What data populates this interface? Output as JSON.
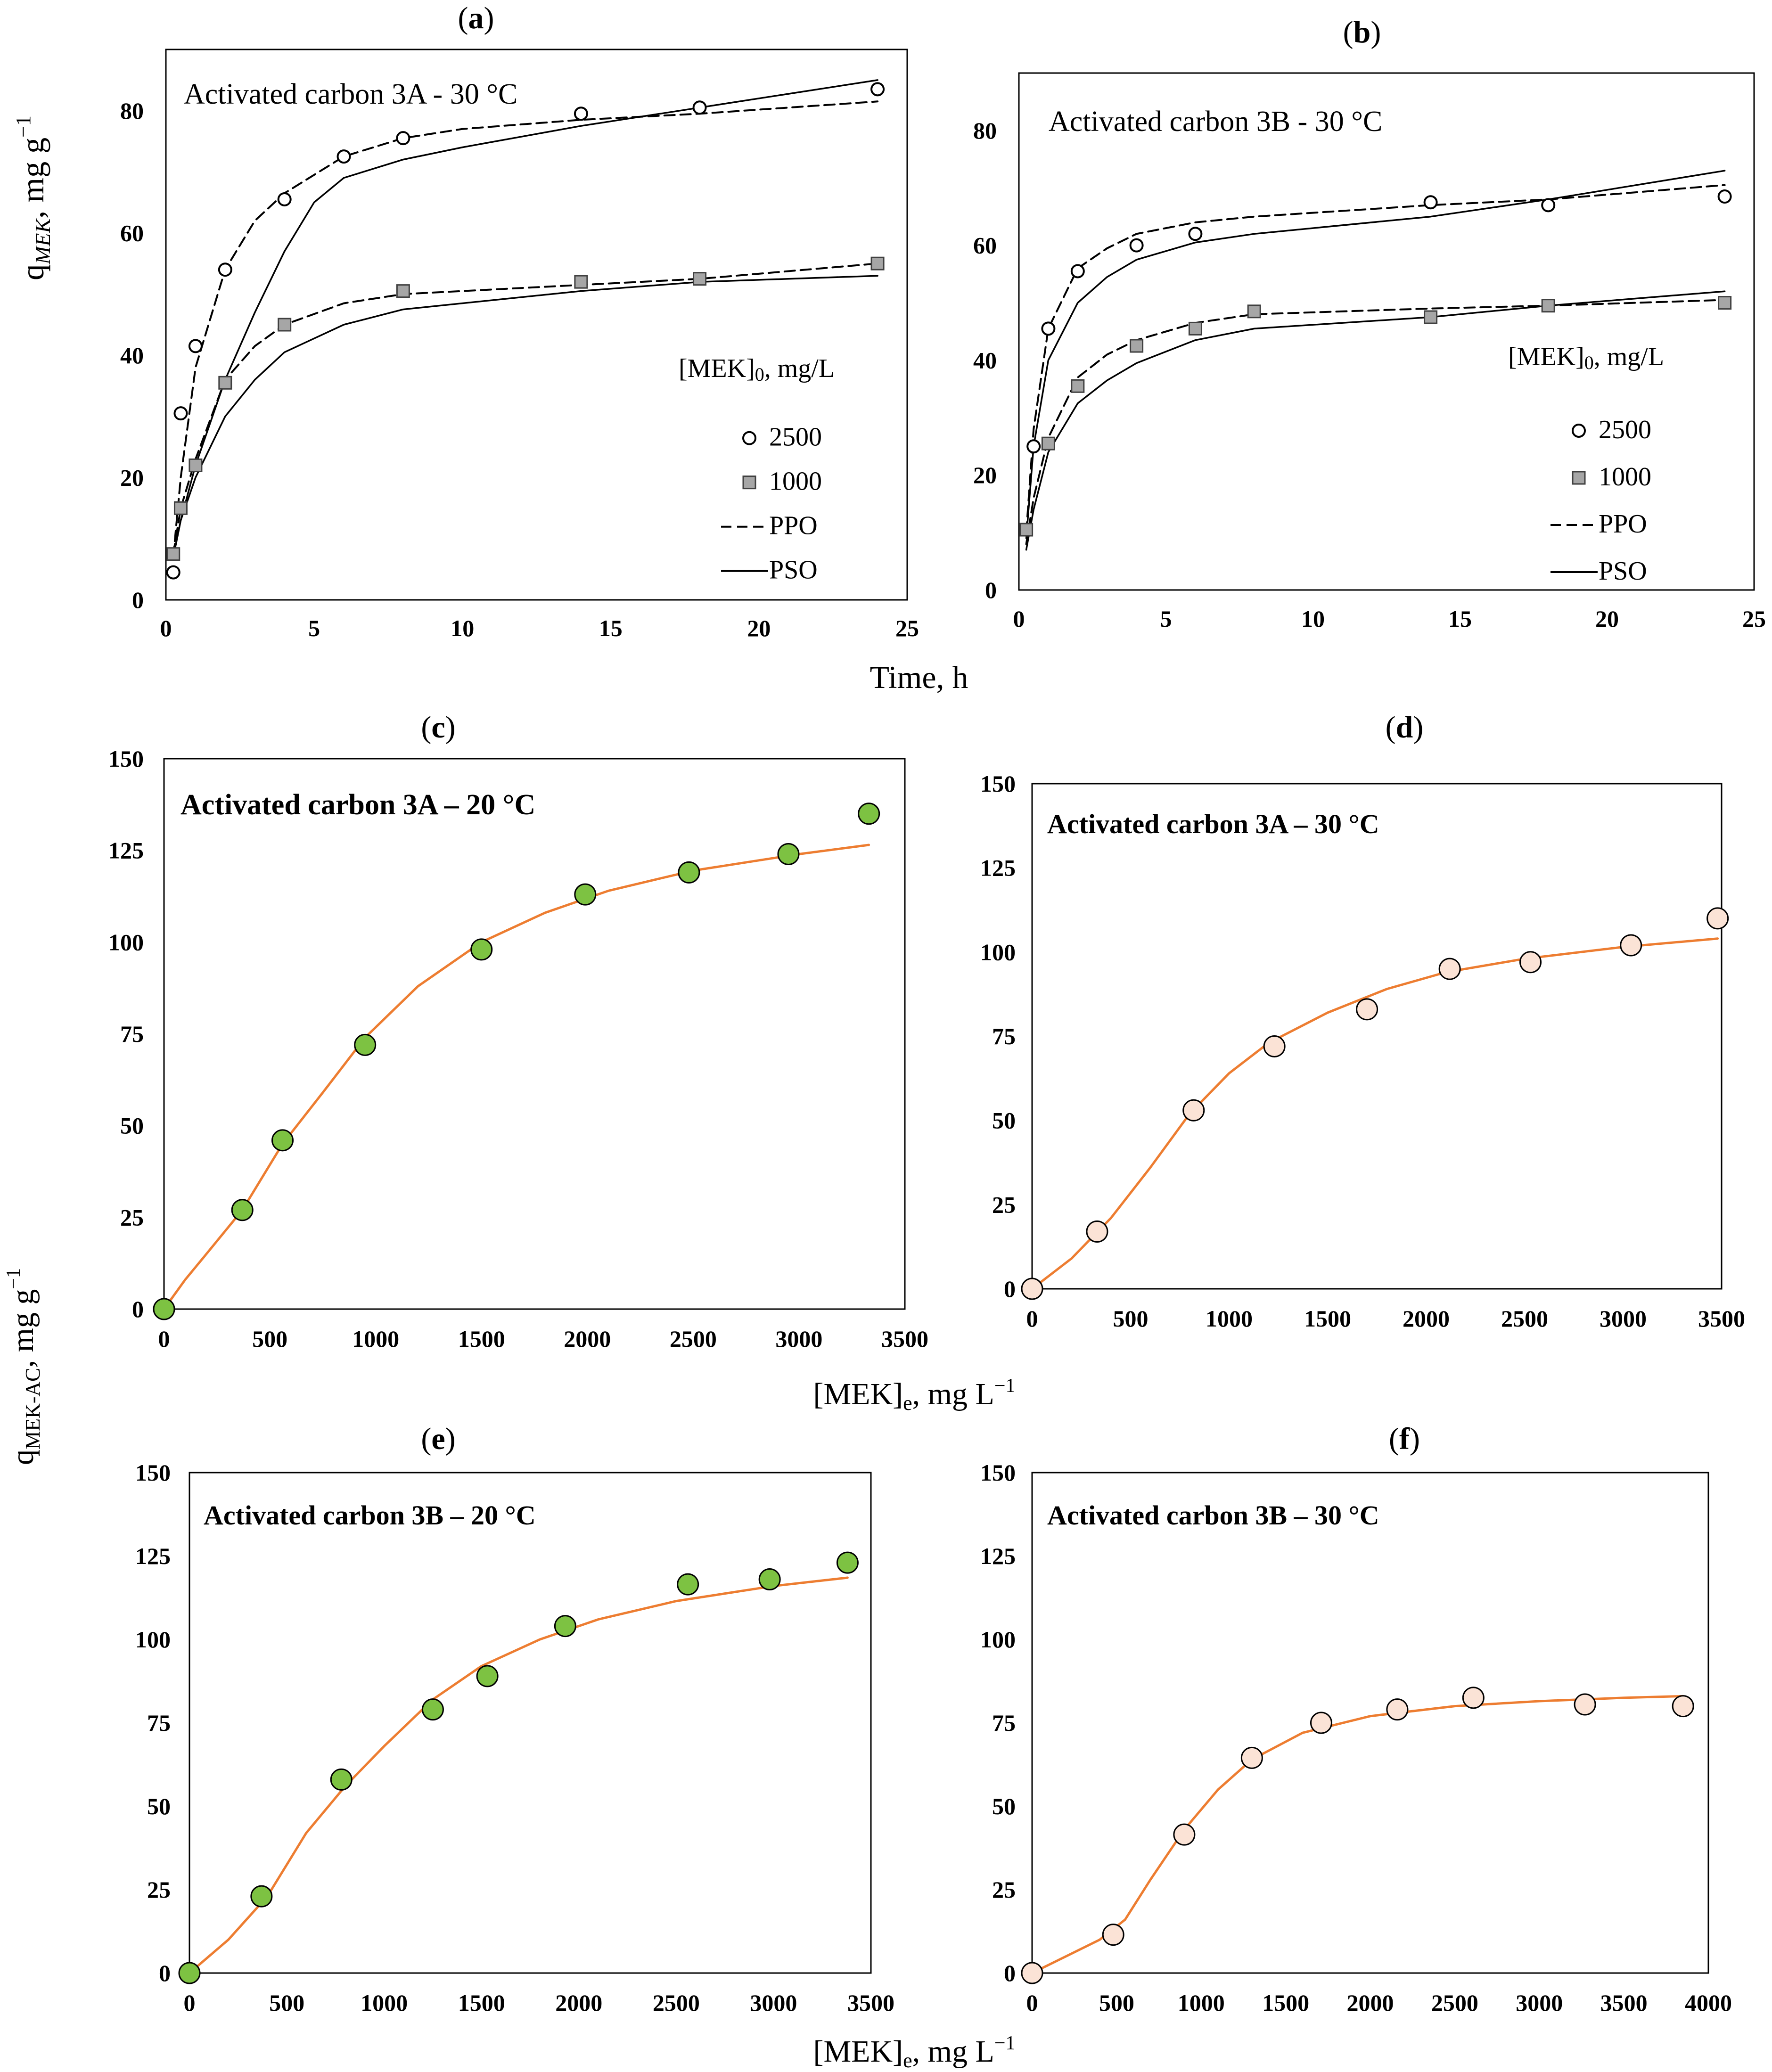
{
  "figure": {
    "kinetics_y_label_main": "q",
    "kinetics_y_label_sub": "MEK",
    "kinetics_y_label_unit": ", mg g",
    "kinetics_y_label_sup": "−1",
    "kinetics_x_label": "Time, h",
    "isotherm_y_label_main": "q",
    "isotherm_y_label_sub": "MEK-AC",
    "isotherm_y_label_unit": ", mg g",
    "isotherm_y_label_sup": "−1",
    "isotherm_x_label_1": "[MEK]",
    "isotherm_x_label_1_sub": "e",
    "isotherm_x_label_1_unit": ", mg L",
    "isotherm_x_label_1_sup": "−1",
    "isotherm_x_label_2": "[MEK]",
    "isotherm_x_label_2_sub": "e",
    "isotherm_x_label_2_unit": ", mg L",
    "isotherm_x_label_2_sup": "−1"
  },
  "colors": {
    "axis": "#000000",
    "square_marker": "#a6a6a6",
    "green_marker": "#7dc242",
    "peach_marker": "#fbe3d6",
    "fit_line": "#ed7d31"
  },
  "chart_data": [
    {
      "id": "a",
      "panel_label": "(a)",
      "type": "scatter",
      "title": "Activated carbon 3A - 30 °C",
      "xlim": [
        0,
        25
      ],
      "ylim": [
        0,
        90
      ],
      "x_ticks": [
        "0",
        "5",
        "10",
        "15",
        "20",
        "25"
      ],
      "y_ticks": [
        "0",
        "20",
        "40",
        "60",
        "80"
      ],
      "legend_title": "[MEK]",
      "legend_title_sub": "0",
      "legend_title_unit": ", mg/L",
      "series": [
        {
          "name": "2500",
          "kind": "points",
          "marker": "circle",
          "x": [
            0.25,
            0.5,
            1,
            2,
            4,
            6,
            8,
            14,
            18,
            24
          ],
          "y": [
            4.5,
            30.5,
            41.5,
            54,
            65.5,
            72.5,
            75.5,
            79.5,
            80.5,
            83.5
          ]
        },
        {
          "name": "1000",
          "kind": "points",
          "marker": "square",
          "x": [
            0.25,
            0.5,
            1,
            2,
            4,
            8,
            14,
            18,
            24
          ],
          "y": [
            7.5,
            15,
            22,
            35.5,
            45,
            50.5,
            52,
            52.5,
            55
          ]
        },
        {
          "name": "PPO",
          "kind": "line",
          "dash": "dashed",
          "x": [
            0.25,
            0.5,
            1,
            2,
            3,
            4,
            6,
            8,
            10,
            14,
            18,
            24
          ],
          "y": [
            7,
            20,
            38,
            54,
            62,
            66.5,
            72.5,
            75.5,
            77,
            78.5,
            79.5,
            81.5
          ]
        },
        {
          "name": "PSO",
          "kind": "line",
          "dash": "solid",
          "x": [
            0.25,
            0.5,
            1,
            2,
            3,
            4,
            5,
            6,
            8,
            10,
            14,
            18,
            24
          ],
          "y": [
            7,
            13,
            22,
            36,
            47,
            57,
            65,
            69,
            72,
            74,
            77.5,
            80.5,
            85
          ]
        },
        {
          "name": "",
          "kind": "line",
          "dash": "dashed",
          "x": [
            0.25,
            0.5,
            1,
            2,
            3,
            4,
            6,
            8,
            14,
            18,
            24
          ],
          "y": [
            7.5,
            15,
            23,
            36,
            41.5,
            45,
            48.5,
            50,
            51.5,
            52.5,
            55
          ]
        },
        {
          "name": "",
          "kind": "line",
          "dash": "solid",
          "x": [
            0.25,
            0.5,
            1,
            2,
            3,
            4,
            6,
            8,
            14,
            18,
            24
          ],
          "y": [
            7,
            13,
            20,
            30,
            36,
            40.5,
            45,
            47.5,
            50.5,
            52,
            53
          ]
        }
      ]
    },
    {
      "id": "b",
      "panel_label": "(b)",
      "type": "scatter",
      "title": "Activated carbon 3B - 30 °C",
      "xlim": [
        0,
        25
      ],
      "ylim": [
        0,
        90
      ],
      "x_ticks": [
        "0",
        "5",
        "10",
        "15",
        "20",
        "25"
      ],
      "y_ticks": [
        "0",
        "20",
        "40",
        "60",
        "80"
      ],
      "legend_title": "[MEK]",
      "legend_title_sub": "0",
      "legend_title_unit": ", mg/L",
      "series": [
        {
          "name": "2500",
          "kind": "points",
          "marker": "circle",
          "x": [
            0.5,
            1,
            2,
            4,
            6,
            14,
            18,
            24
          ],
          "y": [
            25,
            45.5,
            55.5,
            60,
            62,
            67.5,
            67,
            68.5
          ]
        },
        {
          "name": "1000",
          "kind": "points",
          "marker": "square",
          "x": [
            0.25,
            1,
            2,
            4,
            6,
            8,
            14,
            18,
            24
          ],
          "y": [
            10.5,
            25.5,
            35.5,
            42.5,
            45.5,
            48.5,
            47.5,
            49.5,
            50
          ]
        },
        {
          "name": "PPO",
          "kind": "line",
          "dash": "dashed",
          "x": [
            0.25,
            0.5,
            1,
            2,
            3,
            4,
            6,
            8,
            14,
            18,
            24
          ],
          "y": [
            10,
            28,
            45.5,
            56,
            59.5,
            62,
            64,
            65,
            67,
            68,
            70.5
          ]
        },
        {
          "name": "PSO",
          "kind": "line",
          "dash": "solid",
          "x": [
            0.25,
            0.5,
            1,
            2,
            3,
            4,
            6,
            8,
            14,
            18,
            24
          ],
          "y": [
            9,
            25,
            40,
            50,
            54.5,
            57.5,
            60.5,
            62,
            65,
            68,
            73
          ]
        },
        {
          "name": "",
          "kind": "line",
          "dash": "dashed",
          "x": [
            0.25,
            0.5,
            1,
            2,
            3,
            4,
            6,
            8,
            14,
            18,
            24
          ],
          "y": [
            8,
            16,
            26.5,
            37,
            41,
            43.5,
            46.5,
            48,
            49,
            49.5,
            50.5
          ]
        },
        {
          "name": "",
          "kind": "line",
          "dash": "solid",
          "x": [
            0.25,
            0.5,
            1,
            2,
            3,
            4,
            6,
            8,
            14,
            18,
            24
          ],
          "y": [
            7,
            14,
            24,
            32.5,
            36.5,
            39.5,
            43.5,
            45.5,
            47.5,
            49.5,
            52
          ]
        }
      ]
    },
    {
      "id": "c",
      "panel_label": "(c)",
      "type": "scatter",
      "title": "Activated carbon 3A – 20 °C",
      "xlim": [
        0,
        3500
      ],
      "ylim": [
        0,
        150
      ],
      "x_ticks": [
        "0",
        "500",
        "1000",
        "1500",
        "2000",
        "2500",
        "3000",
        "3500"
      ],
      "y_ticks": [
        "0",
        "25",
        "50",
        "75",
        "100",
        "125",
        "150"
      ],
      "series": [
        {
          "name": "",
          "kind": "points",
          "marker": "green",
          "x": [
            0,
            370,
            560,
            950,
            1500,
            1990,
            2480,
            2950,
            3330
          ],
          "y": [
            0,
            27,
            46,
            72,
            98,
            113,
            119,
            124,
            135
          ]
        },
        {
          "name": "",
          "kind": "line",
          "dash": "orange",
          "x": [
            0,
            100,
            200,
            370,
            560,
            750,
            950,
            1200,
            1500,
            1800,
            2100,
            2500,
            3000,
            3330
          ],
          "y": [
            0,
            8,
            15,
            27,
            45,
            59,
            74,
            88,
            100,
            108,
            114,
            119.5,
            124,
            126.5
          ]
        }
      ]
    },
    {
      "id": "d",
      "panel_label": "(d)",
      "type": "scatter",
      "title": "Activated carbon 3A – 30 °C",
      "xlim": [
        0,
        3500
      ],
      "ylim": [
        0,
        150
      ],
      "x_ticks": [
        "0",
        "500",
        "1000",
        "1500",
        "2000",
        "2500",
        "3000",
        "3500"
      ],
      "y_ticks": [
        "0",
        "25",
        "50",
        "75",
        "100",
        "125",
        "150"
      ],
      "series": [
        {
          "name": "",
          "kind": "points",
          "marker": "peach",
          "x": [
            0,
            330,
            820,
            1230,
            1700,
            2120,
            2530,
            3040,
            3480
          ],
          "y": [
            0,
            17,
            53,
            72,
            83,
            95,
            97,
            102,
            110
          ]
        },
        {
          "name": "",
          "kind": "line",
          "dash": "orange",
          "x": [
            0,
            200,
            400,
            600,
            800,
            1000,
            1200,
            1500,
            1800,
            2100,
            2500,
            3000,
            3480
          ],
          "y": [
            0,
            9,
            21,
            36,
            52,
            64,
            73,
            82,
            89,
            94,
            98,
            101.5,
            104
          ]
        }
      ]
    },
    {
      "id": "e",
      "panel_label": "(e)",
      "type": "scatter",
      "title": "Activated carbon 3B – 20 °C",
      "xlim": [
        0,
        3500
      ],
      "ylim": [
        0,
        150
      ],
      "x_ticks": [
        "0",
        "500",
        "1000",
        "1500",
        "2000",
        "2500",
        "3000",
        "3500"
      ],
      "y_ticks": [
        "0",
        "25",
        "50",
        "75",
        "100",
        "125",
        "150"
      ],
      "series": [
        {
          "name": "",
          "kind": "points",
          "marker": "green",
          "x": [
            0,
            370,
            780,
            1250,
            1530,
            1930,
            2560,
            2980,
            3380
          ],
          "y": [
            0,
            23,
            58,
            79,
            89,
            104,
            116.5,
            118,
            123
          ]
        },
        {
          "name": "",
          "kind": "line",
          "dash": "orange",
          "x": [
            0,
            200,
            400,
            600,
            800,
            1000,
            1250,
            1500,
            1800,
            2100,
            2500,
            3000,
            3380
          ],
          "y": [
            0,
            10,
            23,
            42,
            56,
            68,
            82,
            92,
            100,
            106,
            111.5,
            116,
            118.5
          ]
        }
      ]
    },
    {
      "id": "f",
      "panel_label": "(f)",
      "type": "scatter",
      "title": "Activated carbon 3B – 30 °C",
      "xlim": [
        0,
        4000
      ],
      "ylim": [
        0,
        150
      ],
      "x_ticks": [
        "0",
        "500",
        "1000",
        "1500",
        "2000",
        "2500",
        "3000",
        "3500",
        "4000"
      ],
      "y_ticks": [
        "0",
        "25",
        "50",
        "75",
        "100",
        "125",
        "150"
      ],
      "series": [
        {
          "name": "",
          "kind": "points",
          "marker": "peach",
          "x": [
            0,
            480,
            900,
            1300,
            1710,
            2160,
            2610,
            3270,
            3850
          ],
          "y": [
            0,
            11.5,
            41.5,
            64.5,
            75,
            79,
            82.5,
            80.5,
            80
          ]
        },
        {
          "name": "",
          "kind": "line",
          "dash": "orange",
          "x": [
            0,
            200,
            400,
            550,
            700,
            900,
            1100,
            1300,
            1600,
            2000,
            2500,
            3000,
            3500,
            3850
          ],
          "y": [
            0,
            5,
            10,
            16,
            28,
            43,
            55,
            64,
            72,
            77,
            80,
            81.5,
            82.5,
            83
          ]
        }
      ]
    }
  ]
}
